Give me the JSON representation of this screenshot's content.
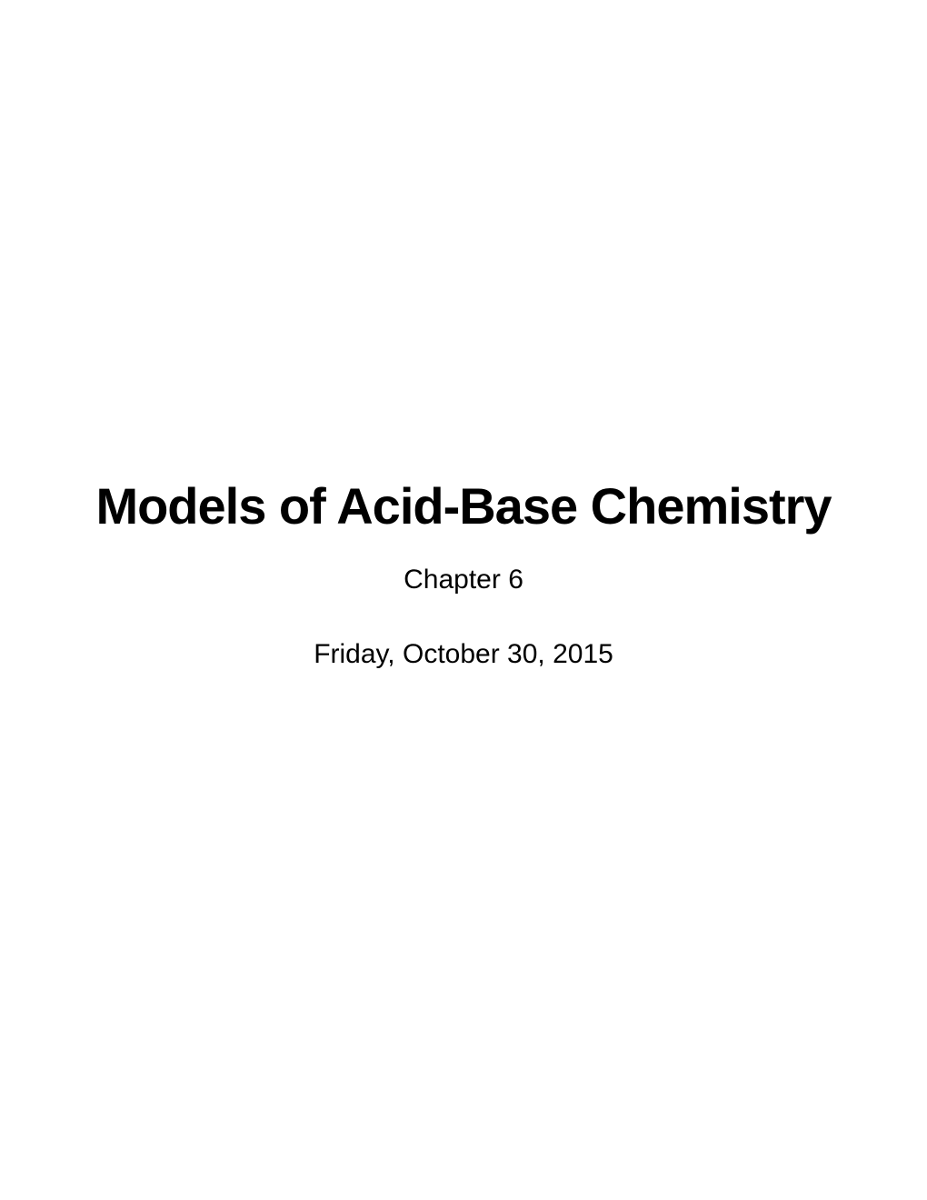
{
  "slide": {
    "title": "Models of Acid-Base Chemistry",
    "subtitle": "Chapter 6",
    "date": "Friday, October 30, 2015",
    "background_color": "#ffffff",
    "text_color": "#000000",
    "title_fontsize": 56,
    "title_fontweight": "bold",
    "subtitle_fontsize": 30,
    "date_fontsize": 30,
    "font_family": "Arial, Helvetica, sans-serif"
  }
}
